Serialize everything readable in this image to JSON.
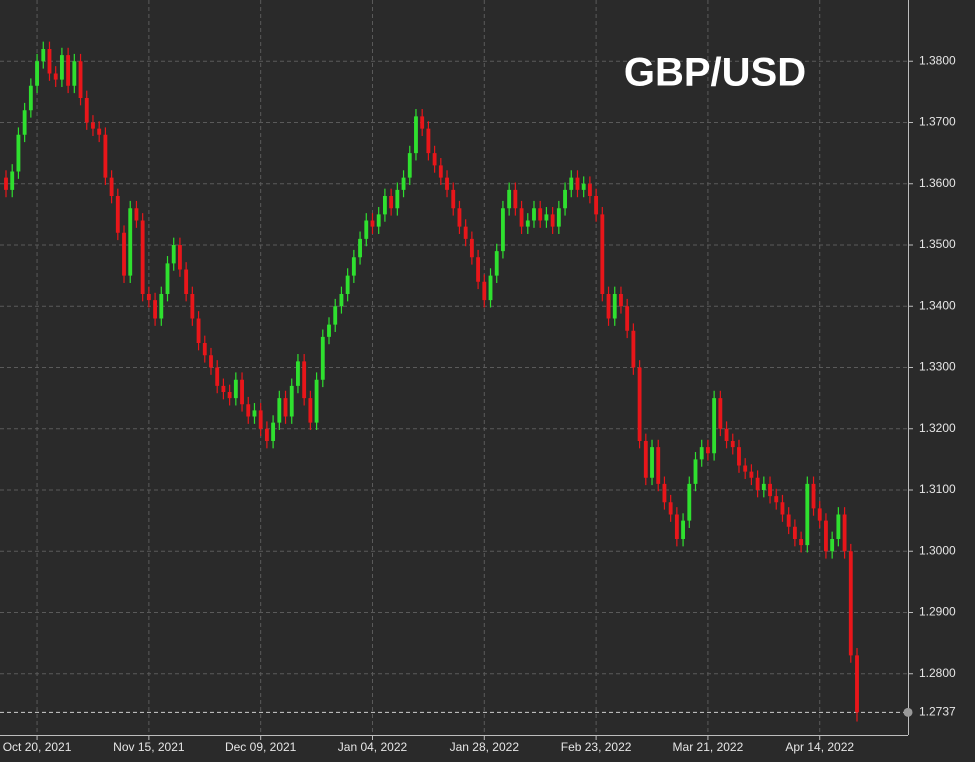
{
  "chart_data": {
    "type": "candlestick",
    "title": "GBP/USD",
    "categories": [
      null,
      null,
      null,
      null,
      null,
      "Oct 20, 2021",
      null,
      null,
      null,
      null,
      null,
      null,
      null,
      null,
      null,
      null,
      null,
      null,
      null,
      null,
      null,
      null,
      null,
      "Nov 15, 2021",
      null,
      null,
      null,
      null,
      null,
      null,
      null,
      null,
      null,
      null,
      null,
      null,
      null,
      null,
      null,
      null,
      null,
      "Dec 09, 2021",
      null,
      null,
      null,
      null,
      null,
      null,
      null,
      null,
      null,
      null,
      null,
      null,
      null,
      null,
      null,
      null,
      null,
      "Jan 04, 2022",
      null,
      null,
      null,
      null,
      null,
      null,
      null,
      null,
      null,
      null,
      null,
      null,
      null,
      null,
      null,
      null,
      null,
      "Jan 28, 2022",
      null,
      null,
      null,
      null,
      null,
      null,
      null,
      null,
      null,
      null,
      null,
      null,
      null,
      null,
      null,
      null,
      null,
      "Feb 23, 2022",
      null,
      null,
      null,
      null,
      null,
      null,
      null,
      null,
      null,
      null,
      null,
      null,
      null,
      null,
      null,
      null,
      null,
      "Mar 21, 2022",
      null,
      null,
      null,
      null,
      null,
      null,
      null,
      null,
      null,
      null,
      null,
      null,
      null,
      null,
      null,
      null,
      null,
      "Apr 14, 2022",
      null,
      null,
      null,
      null,
      null,
      null
    ],
    "open": [
      1.361,
      1.359,
      1.362,
      1.368,
      1.372,
      1.376,
      1.38,
      1.382,
      1.378,
      1.377,
      1.381,
      1.376,
      1.38,
      1.374,
      1.37,
      1.369,
      1.368,
      1.361,
      1.358,
      1.352,
      1.345,
      1.356,
      1.354,
      1.342,
      1.341,
      1.338,
      1.342,
      1.347,
      1.35,
      1.346,
      1.342,
      1.338,
      1.334,
      1.332,
      1.33,
      1.327,
      1.326,
      1.325,
      1.328,
      1.324,
      1.322,
      1.323,
      1.32,
      1.318,
      1.321,
      1.325,
      1.322,
      1.327,
      1.331,
      1.325,
      1.321,
      1.328,
      1.335,
      1.337,
      1.34,
      1.342,
      1.345,
      1.348,
      1.351,
      1.354,
      1.353,
      1.355,
      1.358,
      1.356,
      1.359,
      1.361,
      1.365,
      1.371,
      1.369,
      1.365,
      1.363,
      1.361,
      1.359,
      1.356,
      1.353,
      1.351,
      1.348,
      1.344,
      1.341,
      1.345,
      1.349,
      1.356,
      1.359,
      1.356,
      1.353,
      1.354,
      1.356,
      1.354,
      1.355,
      1.353,
      1.356,
      1.359,
      1.361,
      1.359,
      1.36,
      1.358,
      1.355,
      1.342,
      1.338,
      1.342,
      1.34,
      1.336,
      1.33,
      1.318,
      1.312,
      1.317,
      1.311,
      1.308,
      1.306,
      1.302,
      1.305,
      1.311,
      1.315,
      1.317,
      1.316,
      1.325,
      1.32,
      1.318,
      1.317,
      1.314,
      1.313,
      1.312,
      1.31,
      1.311,
      1.309,
      1.308,
      1.306,
      1.304,
      1.302,
      1.301,
      1.311,
      1.307,
      1.305,
      1.3,
      1.302,
      1.306,
      1.3,
      1.283
    ],
    "high": [
      1.3622,
      1.3632,
      1.3692,
      1.3732,
      1.3772,
      1.3812,
      1.3832,
      1.3832,
      1.3792,
      1.3822,
      1.3822,
      1.3812,
      1.3812,
      1.3752,
      1.3712,
      1.3702,
      1.3692,
      1.3622,
      1.3592,
      1.3532,
      1.3572,
      1.3572,
      1.3552,
      1.3432,
      1.3422,
      1.3432,
      1.3482,
      1.3512,
      1.3512,
      1.3472,
      1.3432,
      1.3392,
      1.3352,
      1.3332,
      1.3312,
      1.3282,
      1.3272,
      1.3292,
      1.3292,
      1.3252,
      1.3242,
      1.3242,
      1.3212,
      1.3222,
      1.3262,
      1.3262,
      1.3282,
      1.3322,
      1.3322,
      1.3262,
      1.3292,
      1.3362,
      1.3382,
      1.3412,
      1.3432,
      1.3462,
      1.3492,
      1.3522,
      1.3552,
      1.3552,
      1.3562,
      1.3592,
      1.3592,
      1.3602,
      1.3622,
      1.3662,
      1.3722,
      1.3722,
      1.3702,
      1.3662,
      1.3642,
      1.3622,
      1.3602,
      1.3572,
      1.3542,
      1.3522,
      1.3492,
      1.3452,
      1.3462,
      1.3502,
      1.3572,
      1.3602,
      1.3602,
      1.3572,
      1.3552,
      1.3572,
      1.3572,
      1.3562,
      1.3562,
      1.3572,
      1.3602,
      1.3622,
      1.3622,
      1.3612,
      1.3612,
      1.3592,
      1.3562,
      1.3432,
      1.3432,
      1.3432,
      1.3412,
      1.3372,
      1.3312,
      1.3192,
      1.3182,
      1.3182,
      1.3122,
      1.3092,
      1.3072,
      1.3062,
      1.3122,
      1.3162,
      1.3182,
      1.3182,
      1.3262,
      1.3262,
      1.3212,
      1.3192,
      1.3182,
      1.3152,
      1.3142,
      1.3132,
      1.3122,
      1.3122,
      1.3102,
      1.3092,
      1.3072,
      1.3052,
      1.3032,
      1.3122,
      1.3122,
      1.3082,
      1.3062,
      1.3032,
      1.3072,
      1.3072,
      1.3012,
      1.2842
    ],
    "low": [
      1.3578,
      1.3578,
      1.3608,
      1.3668,
      1.3708,
      1.3748,
      1.3788,
      1.3768,
      1.3758,
      1.3758,
      1.3748,
      1.3748,
      1.3728,
      1.3688,
      1.3678,
      1.3668,
      1.3598,
      1.3568,
      1.3508,
      1.3438,
      1.3438,
      1.3528,
      1.3408,
      1.3398,
      1.3368,
      1.3368,
      1.3408,
      1.3458,
      1.3448,
      1.3408,
      1.3368,
      1.3328,
      1.3308,
      1.3288,
      1.3258,
      1.3248,
      1.3238,
      1.3238,
      1.3228,
      1.3208,
      1.3208,
      1.3188,
      1.3168,
      1.3168,
      1.3198,
      1.3208,
      1.3208,
      1.3258,
      1.3238,
      1.3198,
      1.3198,
      1.3268,
      1.3338,
      1.3358,
      1.3388,
      1.3408,
      1.3438,
      1.3468,
      1.3498,
      1.3518,
      1.3518,
      1.3538,
      1.3548,
      1.3548,
      1.3578,
      1.3598,
      1.3638,
      1.3678,
      1.3638,
      1.3618,
      1.3598,
      1.3578,
      1.3548,
      1.3518,
      1.3498,
      1.3468,
      1.3428,
      1.3398,
      1.3398,
      1.3438,
      1.3478,
      1.3548,
      1.3548,
      1.3518,
      1.3518,
      1.3528,
      1.3528,
      1.3528,
      1.3518,
      1.3518,
      1.3548,
      1.3578,
      1.3578,
      1.3578,
      1.3568,
      1.3538,
      1.3408,
      1.3368,
      1.3368,
      1.3388,
      1.3348,
      1.3288,
      1.3168,
      1.3108,
      1.3108,
      1.3098,
      1.3068,
      1.3048,
      1.3008,
      1.3008,
      1.3038,
      1.3098,
      1.3138,
      1.3148,
      1.3148,
      1.3188,
      1.3168,
      1.3158,
      1.3128,
      1.3118,
      1.3108,
      1.3088,
      1.3088,
      1.3078,
      1.3068,
      1.3048,
      1.3028,
      1.3008,
      1.2998,
      1.2998,
      1.3058,
      1.3038,
      1.2988,
      1.2988,
      1.3008,
      1.2988,
      1.2818,
      1.2722
    ],
    "close": [
      1.359,
      1.362,
      1.368,
      1.372,
      1.376,
      1.38,
      1.382,
      1.378,
      1.377,
      1.381,
      1.376,
      1.38,
      1.374,
      1.37,
      1.369,
      1.368,
      1.361,
      1.358,
      1.352,
      1.345,
      1.356,
      1.354,
      1.342,
      1.341,
      1.338,
      1.342,
      1.347,
      1.35,
      1.346,
      1.342,
      1.338,
      1.334,
      1.332,
      1.33,
      1.327,
      1.326,
      1.325,
      1.328,
      1.324,
      1.322,
      1.323,
      1.32,
      1.318,
      1.321,
      1.325,
      1.322,
      1.327,
      1.331,
      1.325,
      1.321,
      1.328,
      1.335,
      1.337,
      1.34,
      1.342,
      1.345,
      1.348,
      1.351,
      1.354,
      1.353,
      1.355,
      1.358,
      1.356,
      1.359,
      1.361,
      1.365,
      1.371,
      1.369,
      1.365,
      1.363,
      1.361,
      1.359,
      1.356,
      1.353,
      1.351,
      1.348,
      1.344,
      1.341,
      1.345,
      1.349,
      1.356,
      1.359,
      1.356,
      1.353,
      1.354,
      1.356,
      1.354,
      1.355,
      1.353,
      1.356,
      1.359,
      1.361,
      1.359,
      1.36,
      1.358,
      1.355,
      1.342,
      1.338,
      1.342,
      1.34,
      1.336,
      1.33,
      1.318,
      1.312,
      1.317,
      1.311,
      1.308,
      1.306,
      1.302,
      1.305,
      1.311,
      1.315,
      1.317,
      1.316,
      1.325,
      1.32,
      1.318,
      1.317,
      1.314,
      1.313,
      1.312,
      1.31,
      1.311,
      1.309,
      1.308,
      1.306,
      1.304,
      1.302,
      1.301,
      1.311,
      1.307,
      1.305,
      1.3,
      1.302,
      1.306,
      1.3,
      1.283,
      1.2737
    ],
    "up_color": "#2fe02f",
    "down_color": "#e8161a",
    "ylim": [
      1.27,
      1.39
    ],
    "yticks": [
      {
        "value": 1.28,
        "label": "1.2800"
      },
      {
        "value": 1.29,
        "label": "1.2900"
      },
      {
        "value": 1.3,
        "label": "1.3000"
      },
      {
        "value": 1.31,
        "label": "1.3100"
      },
      {
        "value": 1.32,
        "label": "1.3200"
      },
      {
        "value": 1.33,
        "label": "1.3300"
      },
      {
        "value": 1.34,
        "label": "1.3400"
      },
      {
        "value": 1.35,
        "label": "1.3500"
      },
      {
        "value": 1.36,
        "label": "1.3600"
      },
      {
        "value": 1.37,
        "label": "1.3700"
      },
      {
        "value": 1.38,
        "label": "1.3800"
      }
    ],
    "grid": true,
    "last_price_line": true
  }
}
